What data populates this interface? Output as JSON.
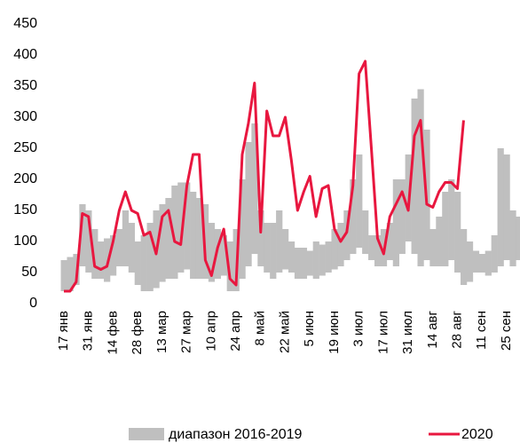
{
  "chart_data": {
    "type": "range-line",
    "categories": [
      "17 янв",
      null,
      null,
      null,
      "31 янв",
      null,
      null,
      null,
      "14 фев",
      null,
      null,
      null,
      "28 фев",
      null,
      null,
      null,
      "13 мар",
      null,
      null,
      null,
      "27 мар",
      null,
      null,
      null,
      "10 апр",
      null,
      null,
      null,
      "24 апр",
      null,
      null,
      null,
      "8 май",
      null,
      null,
      null,
      "22 май",
      null,
      null,
      null,
      "5 июн",
      null,
      null,
      null,
      "19 июн",
      null,
      null,
      null,
      "3 июл",
      null,
      null,
      null,
      "17 июл",
      null,
      null,
      null,
      "31 июл",
      null,
      null,
      null,
      "14 авг",
      null,
      null,
      null,
      "28 авг",
      null,
      null,
      null,
      "11 сен",
      null,
      null,
      null,
      "25 сен",
      null,
      null
    ],
    "ylim": [
      0,
      450
    ],
    "yticks": [
      0,
      50,
      100,
      150,
      200,
      250,
      300,
      350,
      400,
      450
    ],
    "series": [
      {
        "name": "диапазон 2016-2019",
        "color": "#bfbfbf",
        "low": [
          20,
          20,
          30,
          60,
          50,
          40,
          40,
          35,
          45,
          60,
          60,
          50,
          30,
          20,
          20,
          25,
          35,
          40,
          40,
          50,
          55,
          40,
          40,
          40,
          35,
          40,
          45,
          20,
          20,
          40,
          60,
          80,
          60,
          50,
          40,
          50,
          55,
          50,
          40,
          40,
          45,
          40,
          45,
          50,
          55,
          60,
          70,
          80,
          90,
          80,
          70,
          60,
          60,
          70,
          60,
          80,
          100,
          80,
          60,
          70,
          60,
          60,
          60,
          70,
          50,
          30,
          35,
          50,
          50,
          45,
          50,
          60,
          70,
          60,
          70
        ],
        "values": [
          70,
          75,
          80,
          160,
          150,
          120,
          100,
          105,
          110,
          120,
          150,
          130,
          100,
          110,
          130,
          150,
          160,
          170,
          190,
          195,
          195,
          180,
          170,
          160,
          130,
          120,
          110,
          100,
          120,
          200,
          260,
          290,
          150,
          130,
          130,
          150,
          120,
          100,
          90,
          90,
          85,
          100,
          95,
          100,
          120,
          130,
          150,
          200,
          240,
          150,
          110,
          110,
          120,
          130,
          200,
          200,
          240,
          330,
          345,
          280,
          120,
          140,
          180,
          200,
          180,
          120,
          100,
          85,
          80,
          85,
          110,
          250,
          240,
          150,
          140
        ]
      },
      {
        "name": "2020",
        "color": "#e8173f",
        "values": [
          20,
          20,
          35,
          145,
          140,
          60,
          55,
          60,
          100,
          150,
          180,
          150,
          145,
          110,
          115,
          80,
          140,
          150,
          100,
          95,
          190,
          240,
          240,
          70,
          45,
          90,
          120,
          40,
          30,
          240,
          290,
          355,
          115,
          310,
          270,
          270,
          300,
          230,
          150,
          180,
          205,
          140,
          185,
          190,
          120,
          100,
          115,
          190,
          370,
          390,
          250,
          105,
          80,
          140,
          160,
          180,
          150,
          270,
          295,
          160,
          155,
          180,
          195,
          195,
          185,
          295,
          null,
          null,
          null,
          null,
          null,
          null,
          null,
          null,
          null
        ]
      }
    ]
  }
}
